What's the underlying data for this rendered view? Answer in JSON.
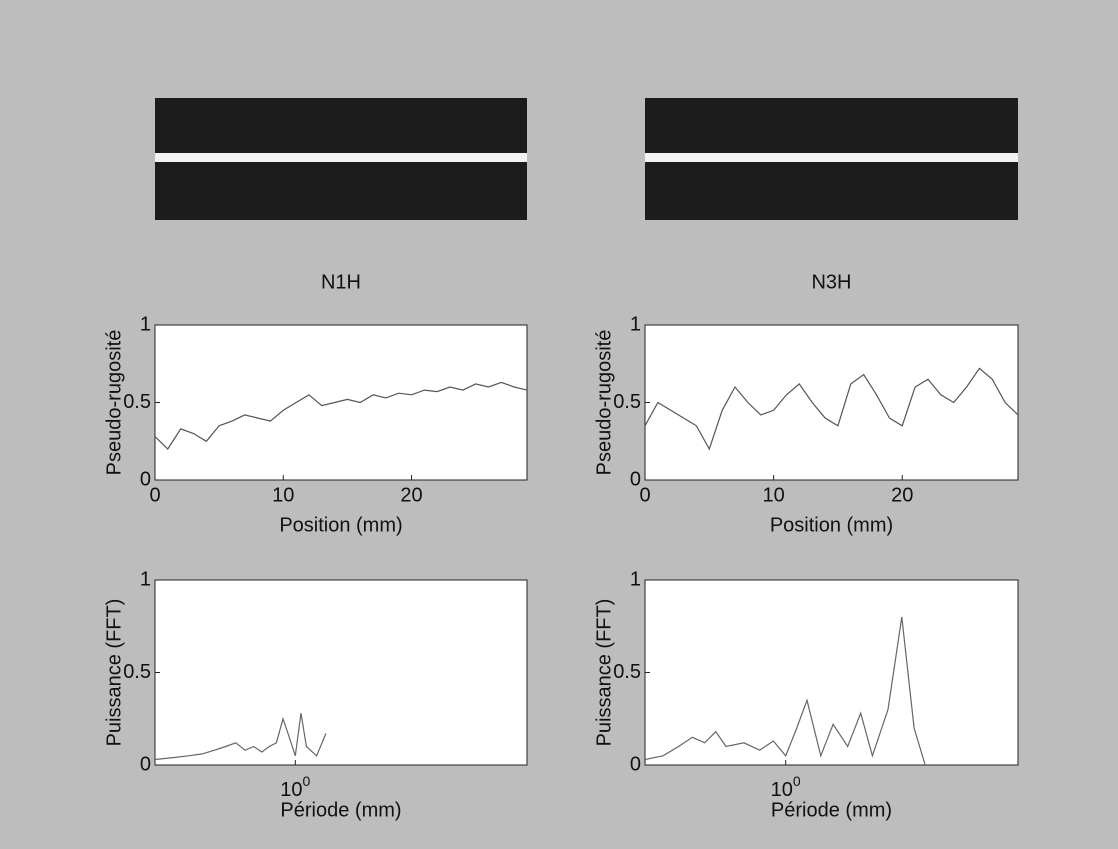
{
  "chart_data": [
    {
      "type": "line",
      "title": "N1H",
      "ylabel": "Pseudo-rugosité",
      "xlabel": "Position (mm)",
      "x": [
        0,
        1,
        2,
        3,
        4,
        5,
        6,
        7,
        8,
        9,
        10,
        11,
        12,
        13,
        14,
        15,
        16,
        17,
        18,
        19,
        20,
        21,
        22,
        23,
        24,
        25,
        26,
        27,
        28,
        29
      ],
      "values": [
        0.28,
        0.2,
        0.33,
        0.3,
        0.25,
        0.35,
        0.38,
        0.42,
        0.4,
        0.38,
        0.45,
        0.5,
        0.55,
        0.48,
        0.5,
        0.52,
        0.5,
        0.55,
        0.53,
        0.56,
        0.55,
        0.58,
        0.57,
        0.6,
        0.58,
        0.62,
        0.6,
        0.63,
        0.6,
        0.58
      ],
      "color": "#555555",
      "xlim": [
        0,
        29
      ],
      "ylim": [
        0,
        1
      ],
      "xticks": [
        0,
        10,
        20
      ],
      "yticks": [
        0,
        0.5,
        1
      ]
    },
    {
      "type": "line",
      "title": "N3H",
      "ylabel": "Pseudo-rugosité",
      "xlabel": "Position (mm)",
      "x": [
        0,
        1,
        2,
        3,
        4,
        5,
        6,
        7,
        8,
        9,
        10,
        11,
        12,
        13,
        14,
        15,
        16,
        17,
        18,
        19,
        20,
        21,
        22,
        23,
        24,
        25,
        26,
        27,
        28,
        29
      ],
      "values": [
        0.35,
        0.5,
        0.45,
        0.4,
        0.35,
        0.2,
        0.45,
        0.6,
        0.5,
        0.42,
        0.45,
        0.55,
        0.62,
        0.5,
        0.4,
        0.35,
        0.62,
        0.68,
        0.55,
        0.4,
        0.35,
        0.6,
        0.65,
        0.55,
        0.5,
        0.6,
        0.72,
        0.65,
        0.5,
        0.42
      ],
      "color": "#555555",
      "xlim": [
        0,
        29
      ],
      "ylim": [
        0,
        1
      ],
      "xticks": [
        0,
        10,
        20
      ],
      "yticks": [
        0,
        0.5,
        1
      ]
    },
    {
      "type": "line",
      "ylabel": "Puissance (FFT)",
      "xlabel": "Période (mm)",
      "xscale": "log",
      "x": [
        0.3,
        0.35,
        0.4,
        0.45,
        0.5,
        0.55,
        0.6,
        0.65,
        0.7,
        0.75,
        0.8,
        0.85,
        0.9,
        0.95,
        1.0,
        1.05,
        1.1,
        1.2,
        1.3
      ],
      "values": [
        0.03,
        0.04,
        0.05,
        0.06,
        0.08,
        0.1,
        0.12,
        0.08,
        0.1,
        0.07,
        0.1,
        0.12,
        0.25,
        0.15,
        0.05,
        0.28,
        0.1,
        0.05,
        0.17
      ],
      "color": "#666666",
      "xlim": [
        0.3,
        7.3
      ],
      "ylim": [
        0,
        1
      ],
      "xticks": [
        {
          "value": 1,
          "label": "10^0"
        }
      ],
      "yticks": [
        0,
        0.5,
        1
      ]
    },
    {
      "type": "line",
      "ylabel": "Puissance (FFT)",
      "xlabel": "Période (mm)",
      "xscale": "log",
      "x": [
        0.3,
        0.35,
        0.4,
        0.45,
        0.5,
        0.55,
        0.6,
        0.7,
        0.8,
        0.9,
        1.0,
        1.1,
        1.2,
        1.35,
        1.5,
        1.7,
        1.9,
        2.1,
        2.4,
        2.7,
        3.0,
        3.3
      ],
      "values": [
        0.03,
        0.05,
        0.1,
        0.15,
        0.12,
        0.18,
        0.1,
        0.12,
        0.08,
        0.13,
        0.05,
        0.2,
        0.35,
        0.05,
        0.22,
        0.1,
        0.28,
        0.05,
        0.3,
        0.8,
        0.2,
        0.0
      ],
      "color": "#666666",
      "xlim": [
        0.3,
        7.3
      ],
      "ylim": [
        0,
        1
      ],
      "xticks": [
        {
          "value": 1,
          "label": "10^0"
        }
      ],
      "yticks": [
        0,
        0.5,
        1
      ]
    }
  ]
}
